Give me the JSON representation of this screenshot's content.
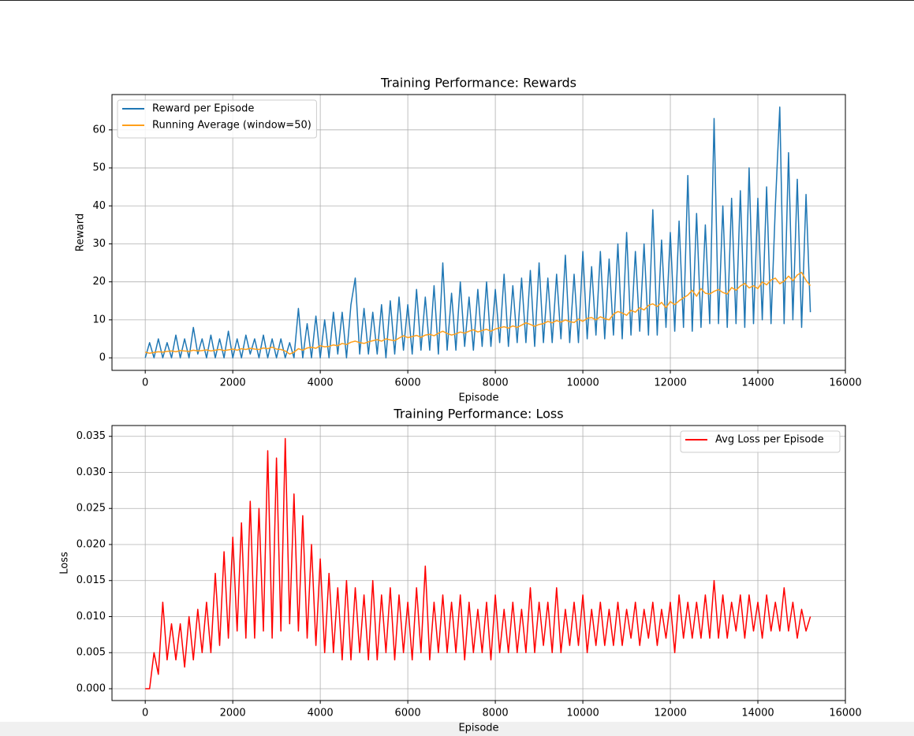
{
  "chart_data": [
    {
      "type": "line",
      "title": "Training Performance: Rewards",
      "xlabel": "Episode",
      "ylabel": "Reward",
      "x": [
        0,
        100,
        200,
        300,
        400,
        500,
        600,
        700,
        800,
        900,
        1000,
        1100,
        1200,
        1300,
        1400,
        1500,
        1600,
        1700,
        1800,
        1900,
        2000,
        2100,
        2200,
        2300,
        2400,
        2500,
        2600,
        2700,
        2800,
        2900,
        3000,
        3100,
        3200,
        3300,
        3400,
        3500,
        3600,
        3700,
        3800,
        3900,
        4000,
        4100,
        4200,
        4300,
        4400,
        4500,
        4600,
        4700,
        4800,
        4900,
        5000,
        5100,
        5200,
        5300,
        5400,
        5500,
        5600,
        5700,
        5800,
        5900,
        6000,
        6100,
        6200,
        6300,
        6400,
        6500,
        6600,
        6700,
        6800,
        6900,
        7000,
        7100,
        7200,
        7300,
        7400,
        7500,
        7600,
        7700,
        7800,
        7900,
        8000,
        8100,
        8200,
        8300,
        8400,
        8500,
        8600,
        8700,
        8800,
        8900,
        9000,
        9100,
        9200,
        9300,
        9400,
        9500,
        9600,
        9700,
        9800,
        9900,
        10000,
        10100,
        10200,
        10300,
        10400,
        10500,
        10600,
        10700,
        10800,
        10900,
        11000,
        11100,
        11200,
        11300,
        11400,
        11500,
        11600,
        11700,
        11800,
        11900,
        12000,
        12100,
        12200,
        12300,
        12400,
        12500,
        12600,
        12700,
        12800,
        12900,
        13000,
        13100,
        13200,
        13300,
        13400,
        13500,
        13600,
        13700,
        13800,
        13900,
        14000,
        14100,
        14200,
        14300,
        14400,
        14500,
        14600,
        14700,
        14800,
        14900,
        15000,
        15100,
        15200
      ],
      "series": [
        {
          "name": "Reward per Episode",
          "color": "#1f77b4",
          "values": [
            0,
            4,
            0,
            5,
            0,
            4,
            0,
            6,
            0,
            5,
            0,
            8,
            1,
            5,
            0,
            6,
            0,
            5,
            0,
            7,
            0,
            5,
            0,
            6,
            1,
            5,
            0,
            6,
            0,
            5,
            0,
            5,
            0,
            4,
            0,
            13,
            0,
            9,
            0,
            11,
            0,
            10,
            0,
            12,
            1,
            12,
            0,
            14,
            21,
            1,
            13,
            1,
            12,
            1,
            14,
            0,
            15,
            1,
            16,
            2,
            14,
            1,
            18,
            2,
            16,
            2,
            19,
            1,
            25,
            2,
            17,
            2,
            20,
            3,
            16,
            2,
            18,
            3,
            20,
            3,
            18,
            4,
            22,
            3,
            19,
            4,
            21,
            4,
            23,
            3,
            25,
            4,
            21,
            4,
            22,
            5,
            27,
            4,
            22,
            4,
            28,
            5,
            24,
            6,
            28,
            5,
            26,
            6,
            30,
            5,
            33,
            6,
            28,
            7,
            30,
            6,
            39,
            6,
            31,
            8,
            33,
            7,
            36,
            8,
            48,
            7,
            38,
            8,
            35,
            9,
            63,
            9,
            40,
            8,
            42,
            9,
            44,
            8,
            50,
            9,
            42,
            10,
            45,
            9,
            40,
            66,
            9,
            54,
            10,
            47,
            8,
            43,
            12
          ]
        },
        {
          "name": "Running Average (window=50)",
          "color": "#ff9f1a",
          "values": [
            1.5,
            1.2,
            1.4,
            1.6,
            1.5,
            1.7,
            1.8,
            1.6,
            1.9,
            1.8,
            1.7,
            2.0,
            1.8,
            1.9,
            2.1,
            1.8,
            2.0,
            2.2,
            1.9,
            2.1,
            2.3,
            2.0,
            2.4,
            2.2,
            2.5,
            2.3,
            2.2,
            2.6,
            2.4,
            2.8,
            2.3,
            2.2,
            1.8,
            1.0,
            1.5,
            2.4,
            2.0,
            2.6,
            2.8,
            2.5,
            3.2,
            2.9,
            3.0,
            3.4,
            3.2,
            3.8,
            3.5,
            4.1,
            4.4,
            4.0,
            3.8,
            4.2,
            4.5,
            4.8,
            4.4,
            5.0,
            4.7,
            4.5,
            5.2,
            5.8,
            5.3,
            5.6,
            5.9,
            5.4,
            6.0,
            6.2,
            5.8,
            6.5,
            7.0,
            6.4,
            6.0,
            6.3,
            6.8,
            6.5,
            7.0,
            7.4,
            6.8,
            7.2,
            7.5,
            7.0,
            7.6,
            7.9,
            8.2,
            7.8,
            8.4,
            8.0,
            8.6,
            9.2,
            8.8,
            8.3,
            8.8,
            9.0,
            9.6,
            9.2,
            9.8,
            9.4,
            10.0,
            9.5,
            9.3,
            10.2,
            9.6,
            10.4,
            10.6,
            10.0,
            10.8,
            10.3,
            10.0,
            11.5,
            12.2,
            11.8,
            11.2,
            12.5,
            12.0,
            13.2,
            12.6,
            13.8,
            14.2,
            13.5,
            14.6,
            13.2,
            14.8,
            14.0,
            15.0,
            15.8,
            16.5,
            17.8,
            16.2,
            18.2,
            17.0,
            16.8,
            17.5,
            18.0,
            17.2,
            16.8,
            18.5,
            17.8,
            18.9,
            19.6,
            18.4,
            19.0,
            18.2,
            20.0,
            19.2,
            20.5,
            21.0,
            19.5,
            20.2,
            21.5,
            20.3,
            21.8,
            22.5,
            20.4,
            19.0
          ]
        }
      ],
      "xlim": [
        -760,
        16000
      ],
      "xticks": [
        0,
        2000,
        4000,
        6000,
        8000,
        10000,
        12000,
        14000,
        16000
      ],
      "ylim": [
        -3.3,
        69.3
      ],
      "yticks": [
        0,
        10,
        20,
        30,
        40,
        50,
        60
      ],
      "grid": true,
      "legend": "upper left"
    },
    {
      "type": "line",
      "title": "Training Performance: Loss",
      "xlabel": "Episode",
      "ylabel": "Loss",
      "x": [
        0,
        100,
        200,
        300,
        400,
        500,
        600,
        700,
        800,
        900,
        1000,
        1100,
        1200,
        1300,
        1400,
        1500,
        1600,
        1700,
        1800,
        1900,
        2000,
        2100,
        2200,
        2300,
        2400,
        2500,
        2600,
        2700,
        2800,
        2900,
        3000,
        3100,
        3200,
        3300,
        3400,
        3500,
        3600,
        3700,
        3800,
        3900,
        4000,
        4100,
        4200,
        4300,
        4400,
        4500,
        4600,
        4700,
        4800,
        4900,
        5000,
        5100,
        5200,
        5300,
        5400,
        5500,
        5600,
        5700,
        5800,
        5900,
        6000,
        6100,
        6200,
        6300,
        6400,
        6500,
        6600,
        6700,
        6800,
        6900,
        7000,
        7100,
        7200,
        7300,
        7400,
        7500,
        7600,
        7700,
        7800,
        7900,
        8000,
        8100,
        8200,
        8300,
        8400,
        8500,
        8600,
        8700,
        8800,
        8900,
        9000,
        9100,
        9200,
        9300,
        9400,
        9500,
        9600,
        9700,
        9800,
        9900,
        10000,
        10100,
        10200,
        10300,
        10400,
        10500,
        10600,
        10700,
        10800,
        10900,
        11000,
        11100,
        11200,
        11300,
        11400,
        11500,
        11600,
        11700,
        11800,
        11900,
        12000,
        12100,
        12200,
        12300,
        12400,
        12500,
        12600,
        12700,
        12800,
        12900,
        13000,
        13100,
        13200,
        13300,
        13400,
        13500,
        13600,
        13700,
        13800,
        13900,
        14000,
        14100,
        14200,
        14300,
        14400,
        14500,
        14600,
        14700,
        14800,
        14900,
        15000,
        15100,
        15200
      ],
      "series": [
        {
          "name": "Avg Loss per Episode",
          "color": "#ff0000",
          "values": [
            0,
            0,
            0.005,
            0.002,
            0.012,
            0.004,
            0.009,
            0.004,
            0.009,
            0.003,
            0.01,
            0.004,
            0.011,
            0.005,
            0.012,
            0.005,
            0.016,
            0.006,
            0.019,
            0.007,
            0.021,
            0.008,
            0.023,
            0.007,
            0.026,
            0.007,
            0.025,
            0.008,
            0.033,
            0.007,
            0.032,
            0.008,
            0.0347,
            0.009,
            0.027,
            0.008,
            0.024,
            0.007,
            0.02,
            0.006,
            0.018,
            0.005,
            0.016,
            0.005,
            0.014,
            0.004,
            0.015,
            0.004,
            0.014,
            0.005,
            0.013,
            0.004,
            0.015,
            0.004,
            0.013,
            0.005,
            0.014,
            0.004,
            0.013,
            0.005,
            0.012,
            0.004,
            0.014,
            0.005,
            0.017,
            0.004,
            0.012,
            0.005,
            0.013,
            0.005,
            0.012,
            0.005,
            0.013,
            0.004,
            0.012,
            0.005,
            0.011,
            0.005,
            0.012,
            0.004,
            0.013,
            0.005,
            0.011,
            0.005,
            0.012,
            0.005,
            0.011,
            0.005,
            0.014,
            0.005,
            0.012,
            0.006,
            0.012,
            0.005,
            0.014,
            0.005,
            0.011,
            0.006,
            0.012,
            0.006,
            0.013,
            0.005,
            0.011,
            0.006,
            0.012,
            0.006,
            0.011,
            0.006,
            0.012,
            0.006,
            0.011,
            0.007,
            0.012,
            0.006,
            0.011,
            0.007,
            0.012,
            0.006,
            0.011,
            0.007,
            0.012,
            0.005,
            0.013,
            0.007,
            0.012,
            0.007,
            0.012,
            0.007,
            0.013,
            0.007,
            0.015,
            0.007,
            0.013,
            0.007,
            0.012,
            0.008,
            0.013,
            0.007,
            0.013,
            0.008,
            0.012,
            0.007,
            0.013,
            0.008,
            0.012,
            0.008,
            0.014,
            0.008,
            0.012,
            0.007,
            0.011,
            0.008,
            0.01
          ]
        }
      ],
      "xlim": [
        -760,
        16000
      ],
      "xticks": [
        0,
        2000,
        4000,
        6000,
        8000,
        10000,
        12000,
        14000,
        16000
      ],
      "ylim": [
        -0.00164,
        0.0365
      ],
      "yticks": [
        {
          "value": 0,
          "label": "0.000"
        },
        {
          "value": 0.005,
          "label": "0.005"
        },
        {
          "value": 0.01,
          "label": "0.010"
        },
        {
          "value": 0.015,
          "label": "0.015"
        },
        {
          "value": 0.02,
          "label": "0.020"
        },
        {
          "value": 0.025,
          "label": "0.025"
        },
        {
          "value": 0.03,
          "label": "0.030"
        },
        {
          "value": 0.035,
          "label": "0.035"
        }
      ],
      "grid": true,
      "legend": "upper right"
    }
  ]
}
